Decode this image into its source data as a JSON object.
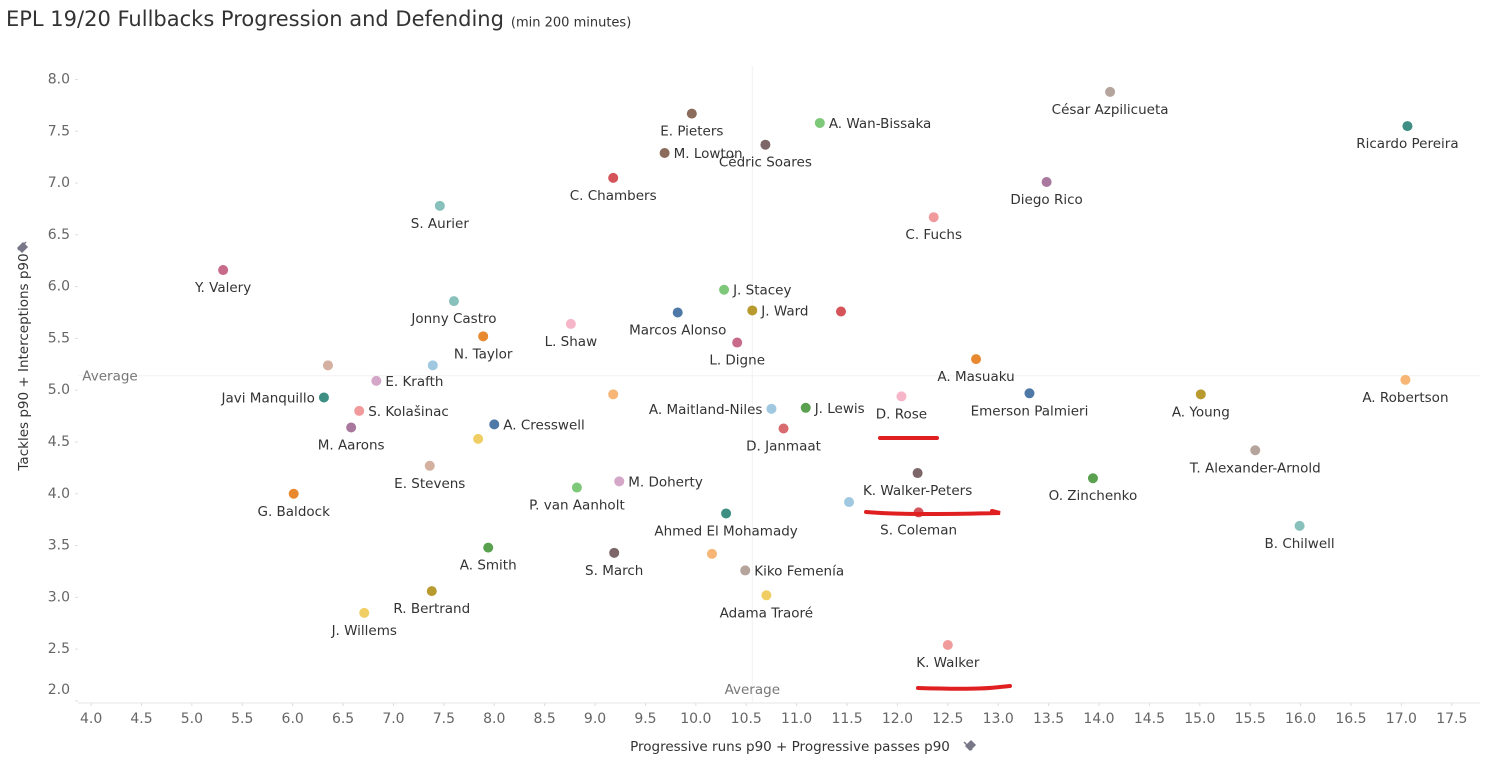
{
  "chart_data": {
    "type": "scatter",
    "title": "EPL 19/20 Fullbacks Progression and Defending",
    "subtitle": "(min 200 minutes)",
    "x_label": "Progressive runs p90 + Progressive passes p90",
    "y_label": "Tackles p90 + Interceptions p90",
    "xlim": [
      3.87,
      17.78
    ],
    "ylim": [
      1.98,
      8.13
    ],
    "xticks": [
      {
        "value": 4,
        "label": "4.0"
      },
      4.5,
      {
        "value": 5,
        "label": "5.0"
      },
      5.5,
      {
        "value": 6,
        "label": "6.0"
      },
      6.5,
      {
        "value": 7,
        "label": "7.0"
      },
      7.5,
      {
        "value": 8,
        "label": "8.0"
      },
      8.5,
      {
        "value": 9,
        "label": "9.0"
      },
      9.5,
      {
        "value": 10,
        "label": "10.0"
      },
      10.5,
      {
        "value": 11,
        "label": "11.0"
      },
      11.5,
      {
        "value": 12,
        "label": "12.0"
      },
      12.5,
      {
        "value": 13,
        "label": "13.0"
      },
      13.5,
      {
        "value": 14,
        "label": "14.0"
      },
      14.5,
      {
        "value": 15,
        "label": "15.0"
      },
      15.5,
      {
        "value": 16,
        "label": "16.0"
      },
      16.5,
      {
        "value": 17,
        "label": "17.0"
      },
      17.5
    ],
    "yticks": [
      {
        "value": 2,
        "label": "2.0"
      },
      2.5,
      {
        "value": 3,
        "label": "3.0"
      },
      3.5,
      {
        "value": 4,
        "label": "4.0"
      },
      4.5,
      {
        "value": 5,
        "label": "5.0"
      },
      5.5,
      {
        "value": 6,
        "label": "6.0"
      },
      6.5,
      {
        "value": 7,
        "label": "7.0"
      },
      7.5,
      {
        "value": 8,
        "label": "8.0"
      }
    ],
    "grid": false,
    "reference_lines": [
      {
        "axis": "y",
        "value": 5.14,
        "label": "Average"
      },
      {
        "axis": "x",
        "value": 10.56,
        "label": "Average"
      }
    ],
    "point_labels": [
      "César Azpilicueta",
      "Ricardo Pereira",
      "E. Pieters",
      "A. Wan-Bissaka",
      "Cédric Soares",
      "M. Lowton",
      "C. Chambers",
      "Diego Rico",
      "S. Aurier",
      "C. Fuchs",
      "Y. Valery",
      "J. Stacey",
      "Jonny Castro",
      "Marcos Alonso",
      "J. Ward",
      null,
      "L. Shaw",
      "N. Taylor",
      "L. Digne",
      null,
      "E. Krafth",
      null,
      "A. Masuaku",
      "Javi Manquillo",
      null,
      "Emerson Palmieri",
      "D. Rose",
      "A. Young",
      "A. Robertson",
      "A. Maitland-Niles",
      "J. Lewis",
      "S. Kolašinac",
      "A. Cresswell",
      "M. Aarons",
      "D. Janmaat",
      null,
      "T. Alexander-Arnold",
      "E. Stevens",
      "K. Walker-Peters",
      "O. Zinchenko",
      "M. Doherty",
      "P. van Aanholt",
      "G. Baldock",
      null,
      "Ahmed El Mohamady",
      "S. Coleman",
      "B. Chilwell",
      "A. Smith",
      "S. March",
      null,
      "Kiko Femenía",
      "R. Bertrand",
      "Adama Traoré",
      "J. Willems",
      "K. Walker"
    ],
    "x": [
      14.11,
      17.06,
      9.96,
      11.23,
      10.69,
      9.69,
      9.18,
      13.48,
      7.46,
      12.36,
      5.31,
      10.28,
      7.6,
      9.82,
      10.56,
      11.44,
      8.76,
      7.89,
      10.41,
      6.35,
      6.83,
      7.39,
      12.78,
      6.31,
      9.18,
      13.31,
      12.04,
      15.01,
      17.04,
      10.75,
      11.09,
      6.66,
      8.0,
      6.58,
      10.87,
      7.84,
      15.55,
      7.36,
      12.2,
      13.94,
      9.24,
      8.82,
      6.01,
      11.52,
      10.3,
      12.21,
      15.99,
      7.94,
      9.19,
      10.16,
      10.49,
      7.38,
      10.7,
      6.71,
      12.5
    ],
    "values": [
      7.88,
      7.55,
      7.67,
      7.58,
      7.37,
      7.29,
      7.05,
      7.01,
      6.78,
      6.67,
      6.16,
      5.97,
      5.86,
      5.75,
      5.77,
      5.76,
      5.64,
      5.52,
      5.46,
      5.24,
      5.09,
      5.24,
      5.3,
      4.93,
      4.96,
      4.97,
      4.94,
      4.96,
      5.1,
      4.82,
      4.83,
      4.8,
      4.67,
      4.64,
      4.63,
      4.53,
      4.42,
      4.27,
      4.2,
      4.15,
      4.12,
      4.06,
      4.0,
      3.92,
      3.81,
      3.82,
      3.69,
      3.48,
      3.43,
      3.42,
      3.26,
      3.06,
      3.02,
      2.85,
      2.54
    ],
    "point_colors": [
      "#b5a49b",
      "#3e8e84",
      "#8b6b5b",
      "#7ec87a",
      "#7d6667",
      "#8b6b5b",
      "#d4545a",
      "#a8789f",
      "#88c0bc",
      "#f19a9c",
      "#c86a8a",
      "#7ec87a",
      "#88c0bc",
      "#4e79a7",
      "#b89a2f",
      "#d4545a",
      "#f7b6c8",
      "#e8892f",
      "#c86a8a",
      "#d4b0a0",
      "#d4a6c8",
      "#a0c8e0",
      "#e8892f",
      "#3e8e84",
      "#f7b676",
      "#4e79a7",
      "#f7b6c8",
      "#b89a2f",
      "#f7b676",
      "#a0c8e0",
      "#59a14f",
      "#f19a9c",
      "#4e79a7",
      "#a8789f",
      "#d86a70",
      "#f1ce63",
      "#b5a49b",
      "#d4b0a0",
      "#7d6667",
      "#59a14f",
      "#d4a6c8",
      "#7ec87a",
      "#e8892f",
      "#a0c8e0",
      "#3e8e84",
      "#d4545a",
      "#88c0bc",
      "#59a14f",
      "#7d6667",
      "#f7b676",
      "#b5a49b",
      "#b89a2f",
      "#f1ce63",
      "#f1ce63",
      "#f19a9c"
    ]
  }
}
